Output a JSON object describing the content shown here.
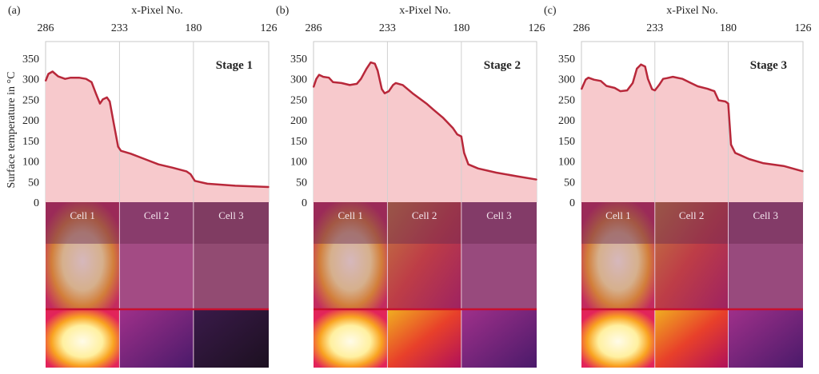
{
  "colors": {
    "line": "#b8283a",
    "fill": "#f7c9cc",
    "grid": "#d0d0d0",
    "cut_line": "#c8102e"
  },
  "chart_data": [
    {
      "type": "area",
      "panel_label": "(a)",
      "stage_label": "Stage 1",
      "xlabel": "x-Pixel No.",
      "ylabel": "Surface temperature in °C",
      "xlim": [
        286,
        126
      ],
      "ylim": [
        0,
        390
      ],
      "x_ticks": [
        286,
        233,
        180,
        126
      ],
      "y_ticks": [
        0,
        50,
        100,
        150,
        200,
        250,
        300,
        350
      ],
      "grid": "vertical at 233 and 180",
      "cells": [
        "Cell 1",
        "Cell 2",
        "Cell 3"
      ],
      "x": [
        286,
        284,
        281,
        277,
        272,
        268,
        262,
        257,
        253,
        250,
        247,
        245,
        242,
        240,
        237,
        234,
        232,
        225,
        215,
        205,
        195,
        185,
        182,
        179,
        170,
        150,
        126
      ],
      "y": [
        295,
        312,
        318,
        306,
        300,
        303,
        303,
        300,
        292,
        265,
        240,
        250,
        255,
        245,
        190,
        135,
        125,
        118,
        105,
        92,
        84,
        75,
        68,
        52,
        45,
        40,
        37
      ]
    },
    {
      "type": "area",
      "panel_label": "(b)",
      "stage_label": "Stage 2",
      "xlabel": "x-Pixel No.",
      "ylabel": "",
      "xlim": [
        286,
        126
      ],
      "ylim": [
        0,
        390
      ],
      "x_ticks": [
        286,
        233,
        180,
        126
      ],
      "y_ticks": [
        0,
        50,
        100,
        150,
        200,
        250,
        300,
        350
      ],
      "grid": "vertical at 233 and 180",
      "cells": [
        "Cell 1",
        "Cell 2",
        "Cell 3"
      ],
      "x": [
        286,
        284,
        282,
        279,
        275,
        272,
        266,
        260,
        255,
        252,
        248,
        245,
        242,
        240,
        237,
        235,
        232,
        229,
        227,
        222,
        215,
        205,
        200,
        193,
        186,
        183,
        180,
        178,
        175,
        168,
        155,
        140,
        126
      ],
      "y": [
        280,
        300,
        310,
        305,
        303,
        292,
        290,
        285,
        288,
        300,
        325,
        340,
        337,
        320,
        275,
        265,
        270,
        285,
        290,
        285,
        265,
        240,
        225,
        205,
        180,
        165,
        160,
        120,
        92,
        82,
        72,
        63,
        55
      ]
    },
    {
      "type": "area",
      "panel_label": "(c)",
      "stage_label": "Stage 3",
      "xlabel": "x-Pixel No.",
      "ylabel": "",
      "xlim": [
        286,
        126
      ],
      "ylim": [
        0,
        390
      ],
      "x_ticks": [
        286,
        233,
        180,
        126
      ],
      "y_ticks": [
        0,
        50,
        100,
        150,
        200,
        250,
        300,
        350
      ],
      "grid": "vertical at 233 and 180",
      "cells": [
        "Cell 1",
        "Cell 2",
        "Cell 3"
      ],
      "x": [
        286,
        283,
        281,
        277,
        272,
        268,
        262,
        258,
        253,
        249,
        246,
        243,
        240,
        238,
        235,
        233,
        230,
        227,
        224,
        220,
        213,
        207,
        202,
        195,
        190,
        187,
        182,
        180,
        178,
        175,
        165,
        155,
        140,
        126
      ],
      "y": [
        275,
        298,
        303,
        298,
        295,
        283,
        278,
        270,
        272,
        290,
        325,
        335,
        330,
        300,
        275,
        272,
        285,
        300,
        302,
        305,
        300,
        290,
        282,
        276,
        270,
        248,
        245,
        240,
        140,
        120,
        105,
        95,
        88,
        75
      ]
    }
  ]
}
